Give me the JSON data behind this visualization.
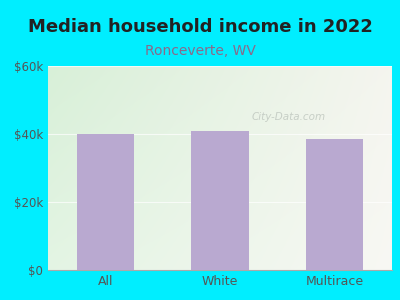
{
  "title": "Median household income in 2022",
  "subtitle": "Ronceverte, WV",
  "categories": [
    "All",
    "White",
    "Multirace"
  ],
  "values": [
    40000,
    41000,
    38500
  ],
  "bar_color": "#b9a9d0",
  "title_fontsize": 13,
  "subtitle_fontsize": 10,
  "subtitle_color": "#8a6a8a",
  "title_color": "#222222",
  "tick_label_color": "#555555",
  "ylim": [
    0,
    60000
  ],
  "yticks": [
    0,
    20000,
    40000,
    60000
  ],
  "ytick_labels": [
    "$0",
    "$20k",
    "$40k",
    "$60k"
  ],
  "background_outer": "#00eeff",
  "background_inner_left": "#d8f0d8",
  "background_inner_right": "#f5f5ef",
  "watermark": "City-Data.com",
  "watermark_color": "#c0c8c0",
  "bar_width": 0.5
}
